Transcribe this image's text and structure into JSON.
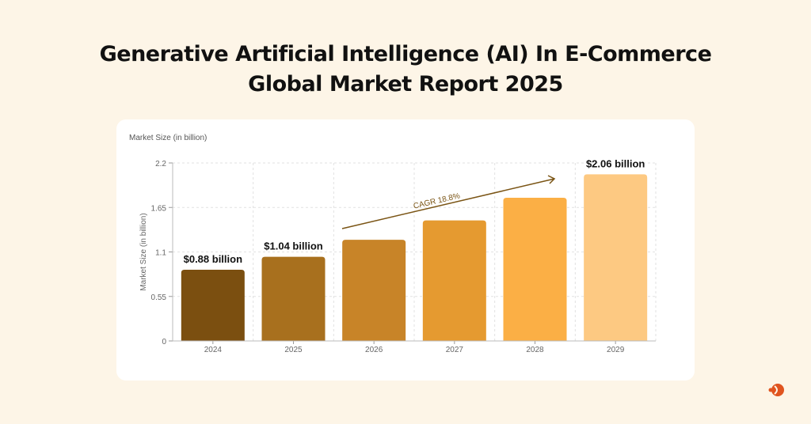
{
  "title_line1": "Generative Artificial Intelligence (AI) In E-Commerce",
  "title_line2": "Global Market Report 2025",
  "card_label": "Market Size (in billion)",
  "chart_data": {
    "type": "bar",
    "categories": [
      "2024",
      "2025",
      "2026",
      "2027",
      "2028",
      "2029"
    ],
    "values": [
      0.88,
      1.04,
      1.25,
      1.49,
      1.77,
      2.06
    ],
    "data_labels": [
      "$0.88 billion",
      "$1.04 billion",
      "",
      "",
      "",
      "$2.06 billion"
    ],
    "ylabel": "Market Size (in billion)",
    "xlabel": "",
    "ylim": [
      0,
      2.2
    ],
    "yticks": [
      0,
      0.55,
      1.1,
      1.65,
      2.2
    ],
    "ytick_labels": [
      "0",
      "0.55",
      "1.1",
      "1.65",
      "2.2"
    ],
    "grid": true,
    "colors": [
      "#7b4f10",
      "#a8701e",
      "#c88428",
      "#e59a30",
      "#fbaf45",
      "#fdc982"
    ],
    "annotation": {
      "text": "CAGR 18.8%",
      "type": "arrow",
      "color": "#7a5414"
    }
  },
  "colors": {
    "background": "#fdf5e7",
    "card": "#ffffff",
    "logo": "#e0541f"
  }
}
